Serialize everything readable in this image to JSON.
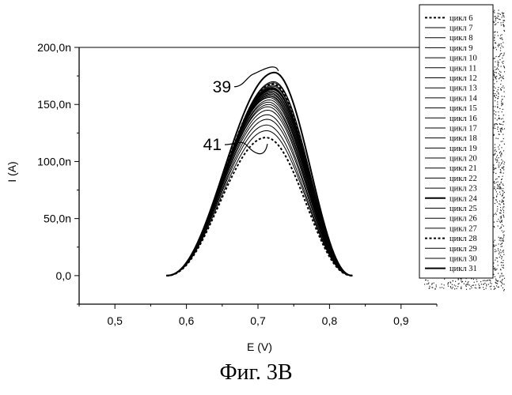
{
  "caption": "Фиг. 3B",
  "chart_data": {
    "type": "line",
    "xlabel": "E (V)",
    "ylabel": "I (A)",
    "xlim": [
      0.45,
      0.95
    ],
    "ylim": [
      -25,
      200
    ],
    "x_ticks": [
      0.5,
      0.6,
      0.7,
      0.8,
      0.9
    ],
    "x_tick_labels": [
      "0,5",
      "0,6",
      "0,7",
      "0,8",
      "0,9"
    ],
    "y_ticks": [
      0,
      50,
      100,
      150,
      200
    ],
    "y_tick_labels": [
      "0,0",
      "50,0n",
      "100,0n",
      "150,0n",
      "200,0n"
    ],
    "y_unit": "nA",
    "x_range": [
      0.572,
      0.832
    ],
    "legend_position": "right",
    "annotations": [
      {
        "text": "39",
        "points_to": "цикл 31"
      },
      {
        "text": "41",
        "points_to": "цикл 6"
      }
    ],
    "series": [
      {
        "name": "цикл 6",
        "peak_x": 0.711,
        "peak_y": 121,
        "style": "dashed",
        "bold": true
      },
      {
        "name": "цикл 7",
        "peak_x": 0.712,
        "peak_y": 127,
        "style": "solid",
        "bold": false
      },
      {
        "name": "цикл 8",
        "peak_x": 0.712,
        "peak_y": 132,
        "style": "solid",
        "bold": false
      },
      {
        "name": "цикл 9",
        "peak_x": 0.713,
        "peak_y": 137,
        "style": "solid",
        "bold": false
      },
      {
        "name": "цикл 10",
        "peak_x": 0.713,
        "peak_y": 141,
        "style": "solid",
        "bold": false
      },
      {
        "name": "цикл 11",
        "peak_x": 0.714,
        "peak_y": 145,
        "style": "solid",
        "bold": false
      },
      {
        "name": "цикл 12",
        "peak_x": 0.714,
        "peak_y": 148,
        "style": "solid",
        "bold": false
      },
      {
        "name": "цикл 13",
        "peak_x": 0.715,
        "peak_y": 150,
        "style": "solid",
        "bold": false
      },
      {
        "name": "цикл 14",
        "peak_x": 0.715,
        "peak_y": 152,
        "style": "solid",
        "bold": false
      },
      {
        "name": "цикл 15",
        "peak_x": 0.716,
        "peak_y": 154,
        "style": "solid",
        "bold": false
      },
      {
        "name": "цикл 16",
        "peak_x": 0.716,
        "peak_y": 156,
        "style": "solid",
        "bold": false
      },
      {
        "name": "цикл 17",
        "peak_x": 0.717,
        "peak_y": 157,
        "style": "solid",
        "bold": false
      },
      {
        "name": "цикл 18",
        "peak_x": 0.717,
        "peak_y": 158,
        "style": "solid",
        "bold": false
      },
      {
        "name": "цикл 19",
        "peak_x": 0.718,
        "peak_y": 159,
        "style": "solid",
        "bold": false
      },
      {
        "name": "цикл 20",
        "peak_x": 0.718,
        "peak_y": 160,
        "style": "solid",
        "bold": false
      },
      {
        "name": "цикл 21",
        "peak_x": 0.719,
        "peak_y": 161,
        "style": "solid",
        "bold": false
      },
      {
        "name": "цикл 22",
        "peak_x": 0.719,
        "peak_y": 162,
        "style": "solid",
        "bold": false
      },
      {
        "name": "цикл 23",
        "peak_x": 0.72,
        "peak_y": 163,
        "style": "solid",
        "bold": false
      },
      {
        "name": "цикл 24",
        "peak_x": 0.72,
        "peak_y": 164,
        "style": "solid",
        "bold": true
      },
      {
        "name": "цикл 25",
        "peak_x": 0.72,
        "peak_y": 165,
        "style": "solid",
        "bold": false
      },
      {
        "name": "цикл 26",
        "peak_x": 0.721,
        "peak_y": 166,
        "style": "solid",
        "bold": false
      },
      {
        "name": "цикл 27",
        "peak_x": 0.721,
        "peak_y": 167,
        "style": "solid",
        "bold": false
      },
      {
        "name": "цикл 28",
        "peak_x": 0.721,
        "peak_y": 168,
        "style": "dashed",
        "bold": true
      },
      {
        "name": "цикл 29",
        "peak_x": 0.722,
        "peak_y": 169,
        "style": "solid",
        "bold": false
      },
      {
        "name": "цикл 30",
        "peak_x": 0.722,
        "peak_y": 170,
        "style": "solid",
        "bold": false
      },
      {
        "name": "цикл 31",
        "peak_x": 0.723,
        "peak_y": 178,
        "style": "solid",
        "bold": true
      }
    ]
  }
}
